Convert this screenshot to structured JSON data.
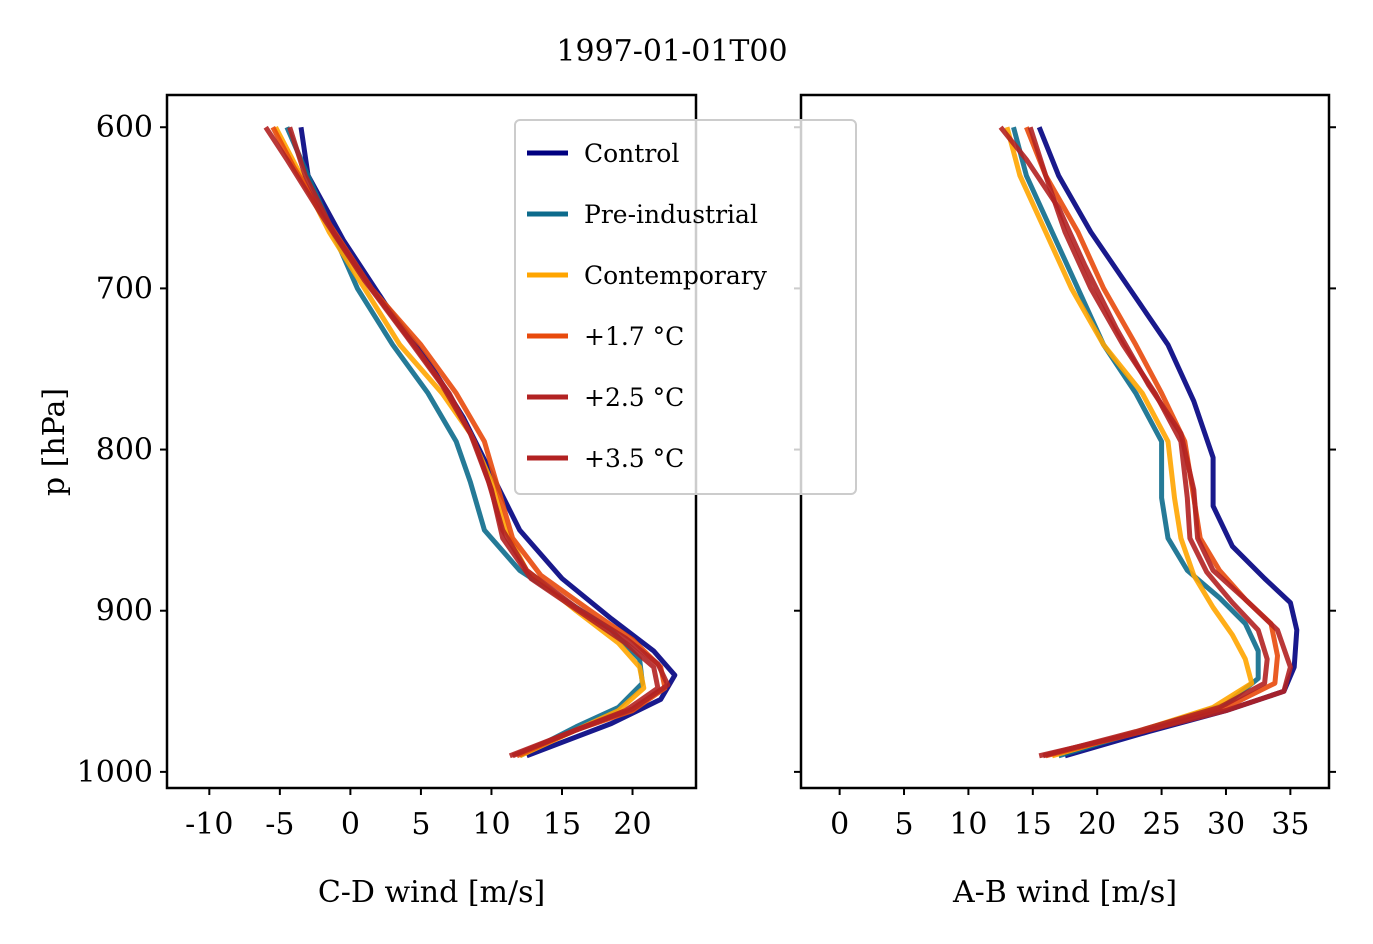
{
  "title": "1997-01-01T00",
  "ylabel": "p [hPa]",
  "legend": {
    "position": "upper-center",
    "entries": [
      {
        "label": "Control",
        "color": "#000080"
      },
      {
        "label": "Pre-industrial",
        "color": "#0d6b8c"
      },
      {
        "label": "Contemporary",
        "color": "#ffa500"
      },
      {
        "label": "+1.7$^\\circ$C",
        "display": "+1.7 °C",
        "color": "#e84a0c"
      },
      {
        "label": "+2.5$^\\circ$C",
        "display": "+2.5 °C",
        "color": "#b22222"
      },
      {
        "label": "+3.5$^\\circ$C",
        "display": "+3.5 °C",
        "color": "#b22222"
      }
    ]
  },
  "chart_data": [
    {
      "type": "line",
      "xlabel": "C-D wind [m/s]",
      "ylabel": "p [hPa]",
      "xlim": [
        -13,
        24.5
      ],
      "ylim": [
        1010,
        580
      ],
      "xticks": [
        -10,
        -5,
        0,
        5,
        10,
        15,
        20
      ],
      "yticks": [
        600,
        700,
        800,
        900,
        1000
      ],
      "yticklabels_visible": true,
      "grid": false,
      "series": [
        {
          "name": "Control",
          "color": "#000080",
          "points": [
            [
              -3.5,
              600
            ],
            [
              -3,
              630
            ],
            [
              -0.5,
              670
            ],
            [
              2.5,
              710
            ],
            [
              5.5,
              745
            ],
            [
              8,
              780
            ],
            [
              10,
              815
            ],
            [
              12,
              850
            ],
            [
              15,
              880
            ],
            [
              18.5,
              905
            ],
            [
              21.5,
              925
            ],
            [
              23,
              940
            ],
            [
              22,
              955
            ],
            [
              18.5,
              970
            ],
            [
              12.5,
              990
            ]
          ]
        },
        {
          "name": "Pre-industrial",
          "color": "#0d6b8c",
          "points": [
            [
              -4.5,
              600
            ],
            [
              -3,
              630
            ],
            [
              -1.5,
              660
            ],
            [
              0.5,
              700
            ],
            [
              3,
              735
            ],
            [
              5.5,
              765
            ],
            [
              7.5,
              795
            ],
            [
              8.5,
              820
            ],
            [
              9.5,
              850
            ],
            [
              12,
              875
            ],
            [
              15.5,
              895
            ],
            [
              18.5,
              912
            ],
            [
              20.5,
              930
            ],
            [
              20.7,
              945
            ],
            [
              19,
              960
            ],
            [
              16,
              972
            ],
            [
              12,
              990
            ]
          ]
        },
        {
          "name": "Contemporary",
          "color": "#ffa500",
          "points": [
            [
              -5.3,
              600
            ],
            [
              -3.5,
              630
            ],
            [
              -1.5,
              665
            ],
            [
              1,
              700
            ],
            [
              3.5,
              735
            ],
            [
              6.5,
              765
            ],
            [
              8.5,
              790
            ],
            [
              10,
              820
            ],
            [
              11,
              850
            ],
            [
              12.5,
              875
            ],
            [
              16,
              900
            ],
            [
              19,
              920
            ],
            [
              20.5,
              935
            ],
            [
              20.8,
              948
            ],
            [
              19,
              962
            ],
            [
              16,
              974
            ],
            [
              12,
              990
            ]
          ]
        },
        {
          "name": "+1.7°C",
          "color": "#e84a0c",
          "points": [
            [
              -5.5,
              600
            ],
            [
              -4,
              625
            ],
            [
              -1.5,
              660
            ],
            [
              1.5,
              700
            ],
            [
              5,
              735
            ],
            [
              7.5,
              765
            ],
            [
              9.5,
              795
            ],
            [
              10.5,
              825
            ],
            [
              11.5,
              855
            ],
            [
              13.5,
              878
            ],
            [
              17,
              900
            ],
            [
              20,
              918
            ],
            [
              22,
              935
            ],
            [
              22.3,
              948
            ],
            [
              20,
              962
            ],
            [
              16,
              974
            ],
            [
              11.8,
              990
            ]
          ]
        },
        {
          "name": "+2.5°C",
          "color": "#b22222",
          "points": [
            [
              -4.3,
              600
            ],
            [
              -3.2,
              630
            ],
            [
              -1.2,
              665
            ],
            [
              1.5,
              700
            ],
            [
              4.5,
              735
            ],
            [
              7,
              765
            ],
            [
              8.8,
              795
            ],
            [
              10,
              825
            ],
            [
              10.8,
              855
            ],
            [
              12.8,
              880
            ],
            [
              16.5,
              902
            ],
            [
              19.5,
              920
            ],
            [
              21.5,
              935
            ],
            [
              21.8,
              948
            ],
            [
              19.5,
              962
            ],
            [
              16,
              974
            ],
            [
              11.5,
              990
            ]
          ]
        },
        {
          "name": "+3.5°C",
          "color": "#b22222",
          "points": [
            [
              -6,
              600
            ],
            [
              -4.5,
              620
            ],
            [
              -2,
              655
            ],
            [
              1,
              695
            ],
            [
              4,
              730
            ],
            [
              6.5,
              760
            ],
            [
              8.5,
              790
            ],
            [
              9.8,
              820
            ],
            [
              10.8,
              850
            ],
            [
              12.5,
              875
            ],
            [
              16,
              898
            ],
            [
              19.5,
              917
            ],
            [
              21.8,
              933
            ],
            [
              22.5,
              946
            ],
            [
              20,
              961
            ],
            [
              16,
              974
            ],
            [
              11.3,
              990
            ]
          ]
        }
      ]
    },
    {
      "type": "line",
      "xlabel": "A-B wind [m/s]",
      "xlim": [
        -3,
        38
      ],
      "ylim": [
        1010,
        580
      ],
      "xticks": [
        0,
        5,
        10,
        15,
        20,
        25,
        30,
        35
      ],
      "yticks": [
        600,
        700,
        800,
        900,
        1000
      ],
      "yticklabels_visible": false,
      "grid": false,
      "series": [
        {
          "name": "Control",
          "color": "#000080",
          "points": [
            [
              15.5,
              600
            ],
            [
              17,
              630
            ],
            [
              19.5,
              665
            ],
            [
              22.5,
              700
            ],
            [
              25.5,
              735
            ],
            [
              27.5,
              770
            ],
            [
              29,
              805
            ],
            [
              29,
              835
            ],
            [
              30.5,
              860
            ],
            [
              33,
              880
            ],
            [
              35,
              895
            ],
            [
              35.5,
              912
            ],
            [
              35.3,
              935
            ],
            [
              34.5,
              950
            ],
            [
              30,
              962
            ],
            [
              24,
              975
            ],
            [
              17.5,
              990
            ]
          ]
        },
        {
          "name": "Pre-industrial",
          "color": "#0d6b8c",
          "points": [
            [
              13.5,
              600
            ],
            [
              14.5,
              630
            ],
            [
              16.5,
              665
            ],
            [
              18.5,
              700
            ],
            [
              20.5,
              735
            ],
            [
              23,
              765
            ],
            [
              25,
              795
            ],
            [
              25,
              830
            ],
            [
              25.5,
              855
            ],
            [
              27,
              875
            ],
            [
              29.5,
              892
            ],
            [
              31.5,
              908
            ],
            [
              32.5,
              925
            ],
            [
              32.5,
              942
            ],
            [
              30,
              958
            ],
            [
              24,
              973
            ],
            [
              17,
              990
            ]
          ]
        },
        {
          "name": "Contemporary",
          "color": "#ffa500",
          "points": [
            [
              13,
              600
            ],
            [
              14,
              630
            ],
            [
              16,
              665
            ],
            [
              18,
              700
            ],
            [
              20.5,
              735
            ],
            [
              23.5,
              765
            ],
            [
              25.5,
              795
            ],
            [
              26,
              830
            ],
            [
              26.5,
              855
            ],
            [
              27.5,
              878
            ],
            [
              29,
              898
            ],
            [
              30.5,
              915
            ],
            [
              31.5,
              930
            ],
            [
              32,
              945
            ],
            [
              29,
              960
            ],
            [
              23.5,
              974
            ],
            [
              16.5,
              990
            ]
          ]
        },
        {
          "name": "+1.7°C",
          "color": "#e84a0c",
          "points": [
            [
              14.5,
              600
            ],
            [
              16,
              630
            ],
            [
              18.5,
              665
            ],
            [
              20.5,
              700
            ],
            [
              23,
              735
            ],
            [
              25,
              765
            ],
            [
              26.8,
              795
            ],
            [
              27.5,
              830
            ],
            [
              28,
              855
            ],
            [
              29.5,
              875
            ],
            [
              31.5,
              893
            ],
            [
              33.5,
              908
            ],
            [
              34,
              928
            ],
            [
              33.8,
              945
            ],
            [
              30,
              960
            ],
            [
              23.5,
              975
            ],
            [
              16,
              990
            ]
          ]
        },
        {
          "name": "+2.5°C",
          "color": "#b22222",
          "points": [
            [
              14.8,
              600
            ],
            [
              16,
              630
            ],
            [
              17.5,
              665
            ],
            [
              19.5,
              700
            ],
            [
              22,
              735
            ],
            [
              24.5,
              765
            ],
            [
              26.5,
              795
            ],
            [
              27,
              830
            ],
            [
              27.2,
              855
            ],
            [
              28.5,
              876
            ],
            [
              30.5,
              895
            ],
            [
              32.5,
              912
            ],
            [
              33.2,
              930
            ],
            [
              33,
              945
            ],
            [
              29.5,
              960
            ],
            [
              23,
              975
            ],
            [
              15.8,
              990
            ]
          ]
        },
        {
          "name": "+3.5°C",
          "color": "#b22222",
          "points": [
            [
              12.5,
              600
            ],
            [
              14.5,
              620
            ],
            [
              17,
              650
            ],
            [
              19,
              685
            ],
            [
              21.5,
              725
            ],
            [
              24,
              760
            ],
            [
              26.5,
              790
            ],
            [
              27.5,
              825
            ],
            [
              27.8,
              855
            ],
            [
              29,
              875
            ],
            [
              31.5,
              893
            ],
            [
              34,
              912
            ],
            [
              35,
              935
            ],
            [
              34.5,
              950
            ],
            [
              30,
              962
            ],
            [
              23,
              976
            ],
            [
              15.5,
              990
            ]
          ]
        }
      ]
    }
  ]
}
